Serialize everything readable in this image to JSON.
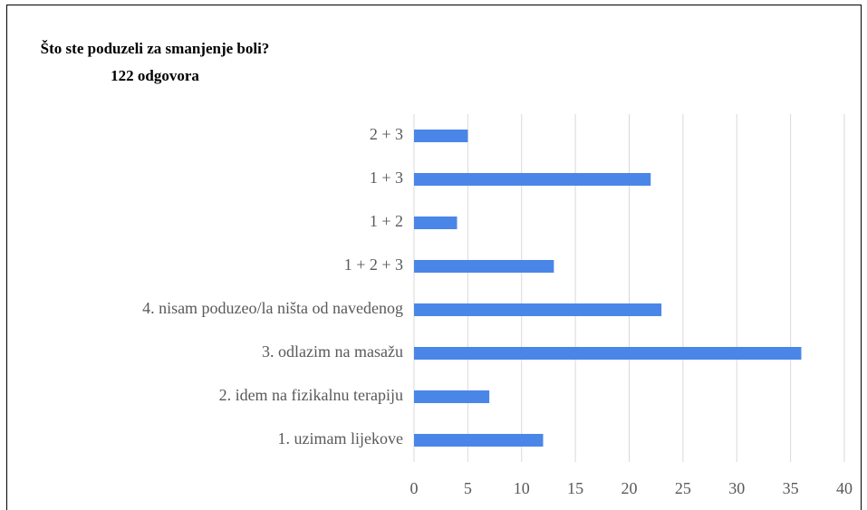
{
  "chart_data": {
    "type": "bar",
    "orientation": "horizontal",
    "title": "Što ste poduzeli za smanjenje boli?",
    "subtitle": "122 odgovora",
    "categories": [
      "2 + 3",
      "1 + 3",
      "1 + 2",
      "1 + 2 + 3",
      "4. nisam poduzeo/la ništa od navedenog",
      "3. odlazim na masažu",
      "2. idem na fizikalnu terapiju",
      "1. uzimam lijekove"
    ],
    "values": [
      5,
      22,
      4,
      13,
      23,
      36,
      7,
      12
    ],
    "color": "#4a86e8",
    "xlim": [
      0,
      40
    ],
    "xticks": [
      0,
      5,
      10,
      15,
      20,
      25,
      30,
      35,
      40
    ],
    "grid": true
  }
}
